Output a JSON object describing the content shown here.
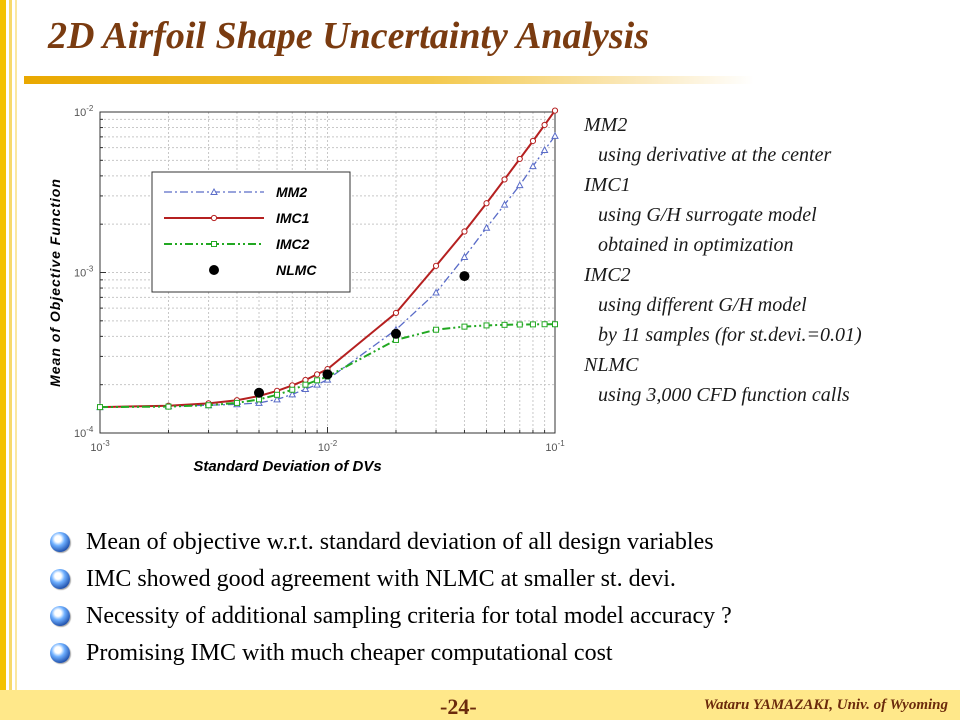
{
  "slide": {
    "title": "2D Airfoil Shape Uncertainty Analysis",
    "page_number": "-24-",
    "footer": "Wataru YAMAZAKI, Univ. of Wyoming"
  },
  "notes": [
    {
      "method": "MM2",
      "lines": [
        "using derivative at the center"
      ]
    },
    {
      "method": "IMC1",
      "lines": [
        "using G/H surrogate model",
        "obtained in optimization"
      ]
    },
    {
      "method": "IMC2",
      "lines": [
        "using different G/H model",
        "by 11 samples (for st.devi.=0.01)"
      ]
    },
    {
      "method": "NLMC",
      "lines": [
        "using 3,000 CFD function calls"
      ]
    }
  ],
  "bullets": [
    "Mean of objective w.r.t. standard deviation of all design variables",
    "IMC showed good agreement with NLMC at smaller st. devi.",
    "Necessity of additional sampling criteria for total model accuracy ?",
    "Promising IMC with much cheaper computational cost"
  ],
  "colors": {
    "title": "#7a3b10",
    "accent": "#e9a800",
    "footer_bg": "#ffe88a",
    "mm2": "#5a6cc8",
    "imc1": "#b52020",
    "imc2": "#22a822",
    "nlmc": "#000000"
  },
  "chart_data": {
    "type": "line",
    "xscale": "log",
    "yscale": "log",
    "xlim": [
      0.001,
      0.1
    ],
    "ylim": [
      0.0001,
      0.01
    ],
    "xlabel": "Standard Deviation of DVs",
    "ylabel": "Mean of Objective Function",
    "xticks": [
      {
        "value": 0.001,
        "base": "10",
        "exp": "-3"
      },
      {
        "value": 0.01,
        "base": "10",
        "exp": "-2"
      },
      {
        "value": 0.1,
        "base": "10",
        "exp": "-1"
      }
    ],
    "yticks": [
      {
        "value": 0.0001,
        "base": "10",
        "exp": "-4"
      },
      {
        "value": 0.001,
        "base": "10",
        "exp": "-3"
      },
      {
        "value": 0.01,
        "base": "10",
        "exp": "-2"
      }
    ],
    "grid": true,
    "legend_position": "top-left",
    "series": [
      {
        "name": "MM2",
        "style": "dash-dot",
        "marker": "triangle",
        "x": [
          0.001,
          0.002,
          0.003,
          0.004,
          0.005,
          0.006,
          0.007,
          0.008,
          0.009,
          0.01,
          0.02,
          0.03,
          0.04,
          0.05,
          0.06,
          0.07,
          0.08,
          0.09,
          0.1
        ],
        "y": [
          0.000145,
          0.000147,
          0.000149,
          0.000151,
          0.000154,
          0.000162,
          0.000174,
          0.000188,
          0.0002,
          0.000215,
          0.00044,
          0.00075,
          0.00125,
          0.0019,
          0.00265,
          0.0035,
          0.0046,
          0.0058,
          0.0071
        ]
      },
      {
        "name": "IMC1",
        "style": "solid",
        "marker": "circle",
        "x": [
          0.001,
          0.002,
          0.003,
          0.004,
          0.005,
          0.006,
          0.007,
          0.008,
          0.009,
          0.01,
          0.02,
          0.03,
          0.04,
          0.05,
          0.06,
          0.07,
          0.08,
          0.09,
          0.1
        ],
        "y": [
          0.000145,
          0.000148,
          0.000153,
          0.00016,
          0.00017,
          0.000183,
          0.000198,
          0.000214,
          0.000232,
          0.00025,
          0.00056,
          0.0011,
          0.0018,
          0.0027,
          0.0038,
          0.0051,
          0.0066,
          0.0083,
          0.0102
        ]
      },
      {
        "name": "IMC2",
        "style": "dash-dot-dot",
        "marker": "square",
        "x": [
          0.001,
          0.002,
          0.003,
          0.004,
          0.005,
          0.006,
          0.007,
          0.008,
          0.009,
          0.01,
          0.02,
          0.03,
          0.04,
          0.05,
          0.06,
          0.07,
          0.08,
          0.09,
          0.1
        ],
        "y": [
          0.000145,
          0.000146,
          0.000149,
          0.000154,
          0.000162,
          0.000173,
          0.000186,
          0.0002,
          0.000213,
          0.000225,
          0.00038,
          0.00044,
          0.00046,
          0.000468,
          0.000472,
          0.000474,
          0.000475,
          0.000476,
          0.000476
        ]
      },
      {
        "name": "NLMC",
        "style": "markers",
        "marker": "filled-circle",
        "x": [
          0.005,
          0.01,
          0.02,
          0.04
        ],
        "y": [
          0.000178,
          0.000232,
          0.000415,
          0.00095
        ]
      }
    ]
  }
}
